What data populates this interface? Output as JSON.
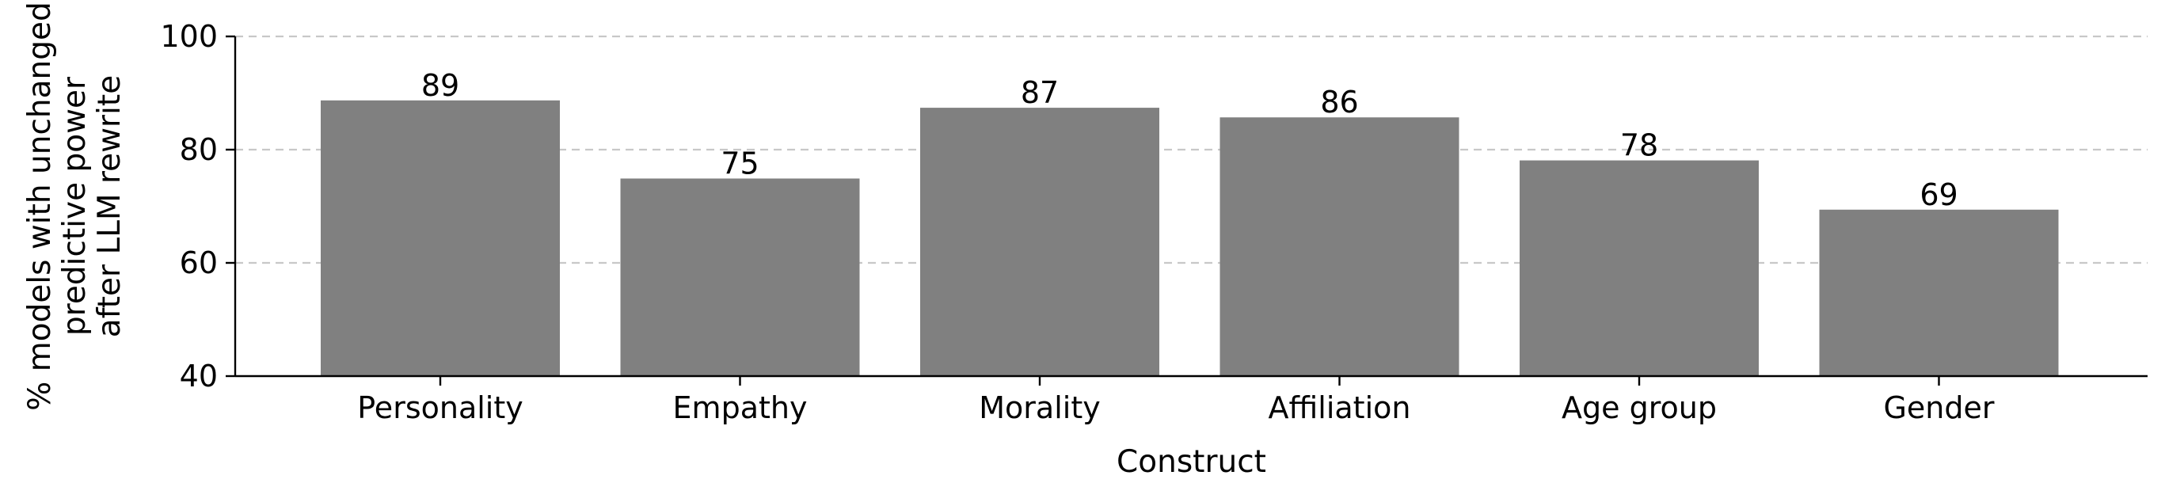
{
  "chart_data": {
    "type": "bar",
    "categories": [
      "Personality",
      "Empathy",
      "Morality",
      "Affiliation",
      "Age group",
      "Gender"
    ],
    "values": [
      88.7,
      74.9,
      87.4,
      85.7,
      78.1,
      69.4
    ],
    "data_labels": [
      "89",
      "75",
      "87",
      "86",
      "78",
      "69"
    ],
    "xlabel": "Construct",
    "ylabel_lines": [
      "% models with unchanged",
      "predictive power",
      "after LLM rewrite"
    ],
    "ylim": [
      40,
      100
    ],
    "yticks": [
      40,
      60,
      80,
      100
    ],
    "grid": true,
    "legend": "none",
    "bar_color": "#808080"
  }
}
